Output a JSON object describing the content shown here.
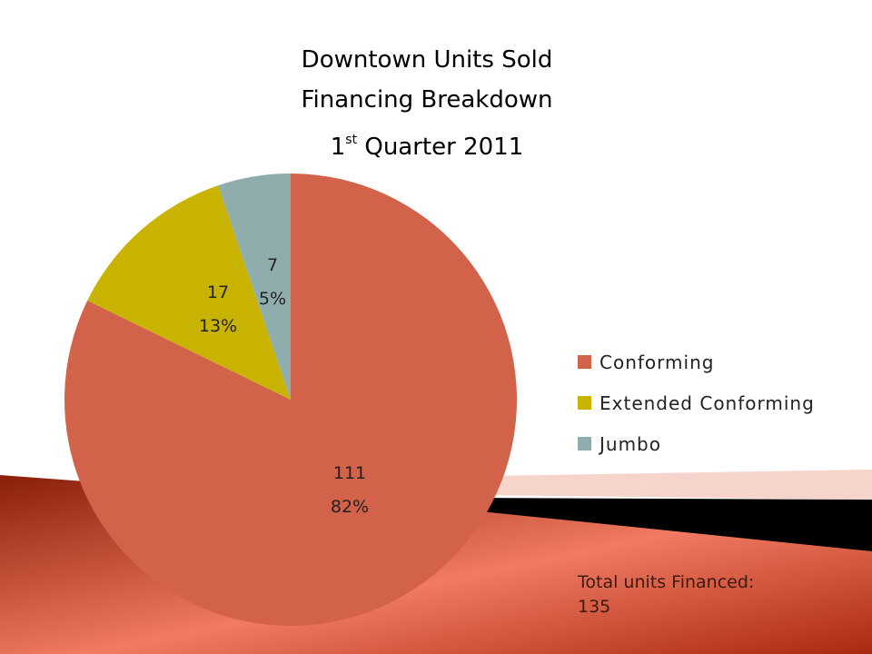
{
  "title": {
    "line1": "Downtown Units Sold",
    "line2": "Financing Breakdown",
    "line3_prefix": "1",
    "line3_sup": "st",
    "line3_suffix": " Quarter 2011"
  },
  "chart_data": {
    "type": "pie",
    "slices": [
      {
        "label": "Conforming",
        "value": 111,
        "percent": "82%",
        "color": "#d2634a"
      },
      {
        "label": "Extended Conforming",
        "value": 17,
        "percent": "13%",
        "color": "#c8b400"
      },
      {
        "label": "Jumbo",
        "value": 7,
        "percent": "5%",
        "color": "#8fadad"
      }
    ],
    "legend_position": "right"
  },
  "footer": {
    "total_label": "Total units Financed:",
    "total_value": "135"
  },
  "colors": {
    "band_dark": "#8a1e08",
    "band_light": "#f07a62",
    "band_black": "#000000",
    "band_pink": "#f6d4cc"
  }
}
